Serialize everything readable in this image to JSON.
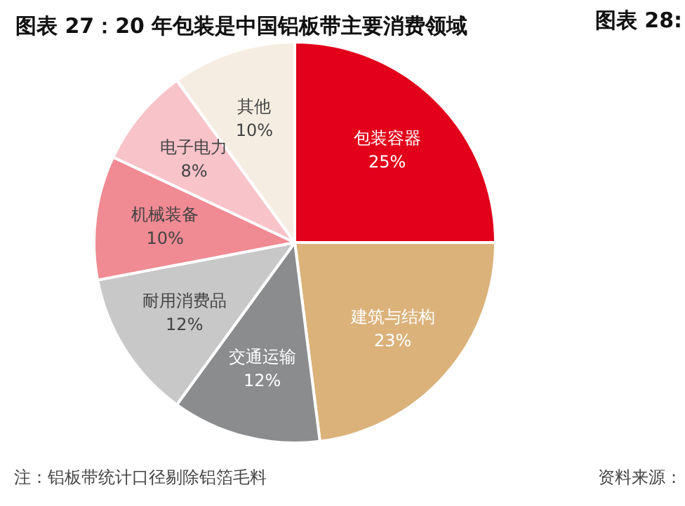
{
  "chart_data": {
    "type": "pie",
    "title": "图表 27：20 年包装是中国铝板带主要消费领域",
    "categories": [
      "包装容器",
      "建筑与结构",
      "交通运输",
      "耐用消费品",
      "机械装备",
      "电子电力",
      "其他"
    ],
    "values": [
      25,
      23,
      12,
      12,
      10,
      8,
      10
    ],
    "value_labels": [
      "25%",
      "23%",
      "12%",
      "12%",
      "10%",
      "8%",
      "10%"
    ],
    "colors": [
      "#e2001a",
      "#dbb27a",
      "#8a8c8e",
      "#c8c8c8",
      "#f08a93",
      "#f8c3c9",
      "#f6ede2"
    ],
    "legend": false,
    "annotations": [
      "注：铝板带统计口径剔除铝箔毛料",
      "资料来源：",
      "图表 28:"
    ]
  }
}
